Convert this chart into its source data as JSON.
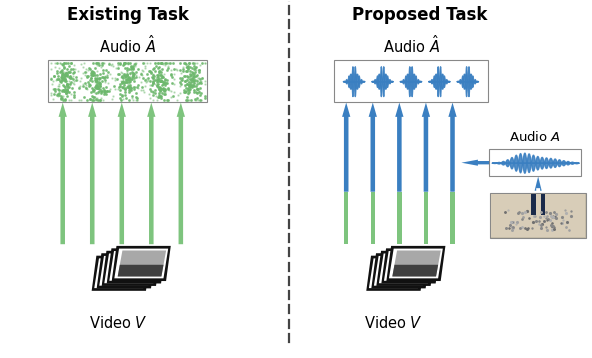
{
  "title_left": "Existing Task",
  "title_right": "Proposed Task",
  "label_audio_hat": "Audio $\\hat{A}$",
  "label_audio_A": "Audio $A$",
  "label_video_left": "Video $V$",
  "label_video_right": "Video $V$",
  "green_color": "#7ec47e",
  "blue_color": "#3a7fc1",
  "bg_color": "#ffffff",
  "dashed_line_color": "#555555",
  "green_waveform_color": "#6db86d",
  "blue_waveform_color": "#3a7fc1",
  "figsize": [
    5.92,
    3.58
  ],
  "dpi": 100
}
